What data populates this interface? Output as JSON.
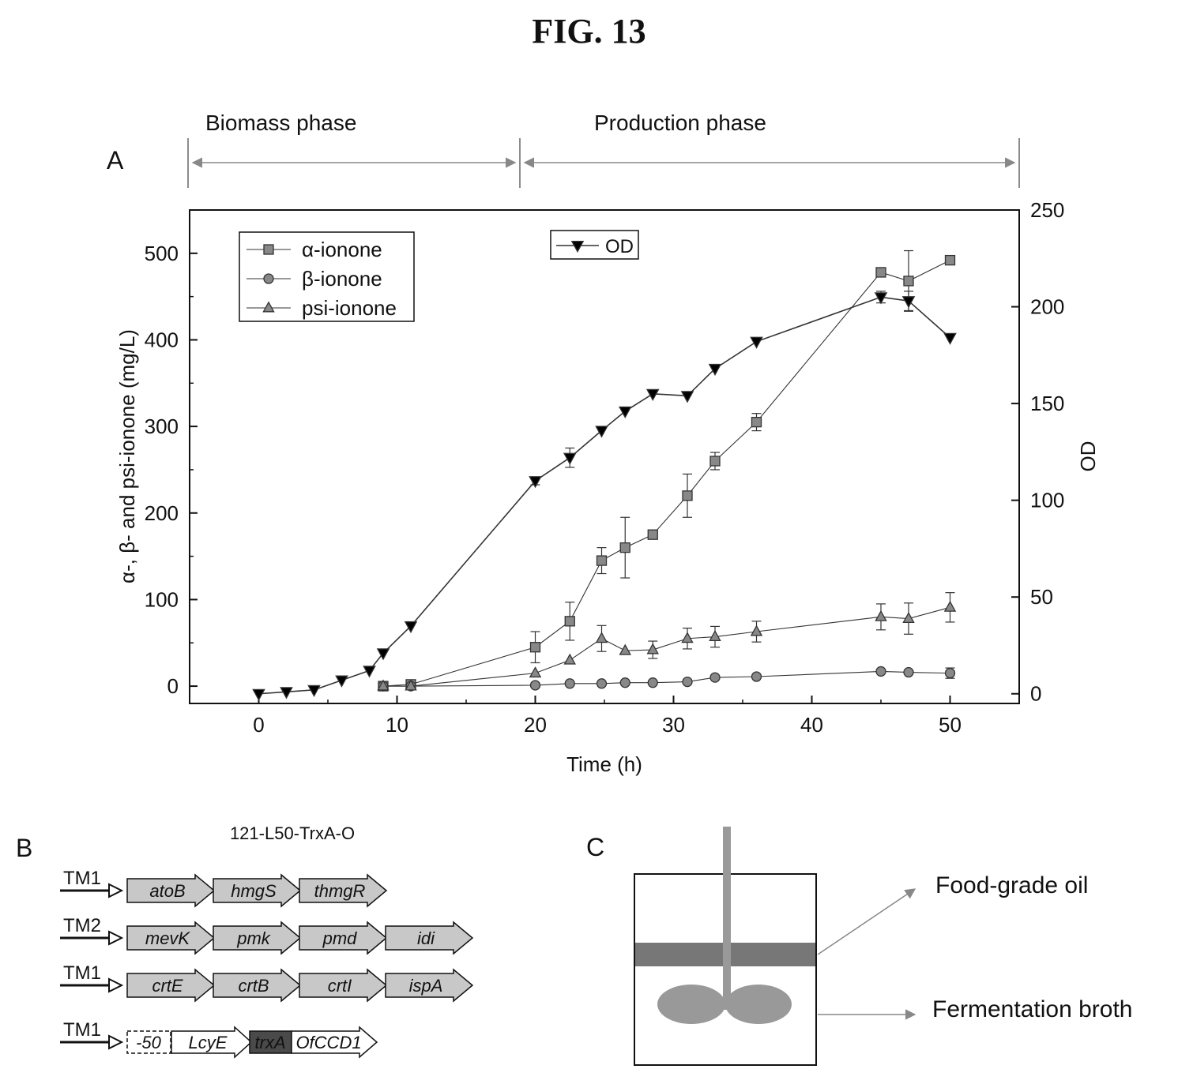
{
  "figure_title": "FIG. 13",
  "panels": {
    "a": "A",
    "b": "B",
    "c": "C"
  },
  "phases": {
    "biomass": "Biomass phase",
    "production": "Production phase"
  },
  "chart_data": {
    "type": "line",
    "xlabel": "Time (h)",
    "ylabel": "α-, β- and psi-ionone (mg/L)",
    "y2label": "OD",
    "xlim": [
      -5,
      55
    ],
    "ylim": [
      -20,
      550
    ],
    "y2lim": [
      -5,
      250
    ],
    "xticks": [
      0,
      10,
      20,
      30,
      40,
      50
    ],
    "yticks": [
      0,
      100,
      200,
      300,
      400,
      500
    ],
    "y2ticks": [
      0,
      50,
      100,
      150,
      200,
      250
    ],
    "legend_left": "top-left",
    "legend_right": "top-center",
    "series": [
      {
        "name": "α-ionone",
        "axis": "left",
        "marker": "square",
        "x": [
          9,
          11,
          20,
          22.5,
          24.8,
          26.5,
          28.5,
          31,
          33,
          36,
          45,
          47,
          50
        ],
        "y": [
          0,
          2,
          45,
          75,
          145,
          160,
          175,
          220,
          260,
          305,
          478,
          468,
          492
        ],
        "err": [
          0,
          0,
          18,
          22,
          15,
          35,
          5,
          25,
          10,
          10,
          0,
          35,
          0
        ]
      },
      {
        "name": "β-ionone",
        "axis": "left",
        "marker": "circle",
        "x": [
          9,
          11,
          20,
          22.5,
          24.8,
          26.5,
          28.5,
          31,
          33,
          36,
          45,
          47,
          50
        ],
        "y": [
          0,
          0,
          1,
          3,
          3,
          4,
          4,
          5,
          10,
          11,
          17,
          16,
          15
        ],
        "err": [
          0,
          0,
          0,
          0,
          0,
          0,
          0,
          0,
          0,
          0,
          0,
          0,
          6
        ]
      },
      {
        "name": "psi-ionone",
        "axis": "left",
        "marker": "triangle",
        "x": [
          9,
          11,
          20,
          22.5,
          24.8,
          26.5,
          28.5,
          31,
          33,
          36,
          45,
          47,
          50
        ],
        "y": [
          0,
          0,
          15,
          30,
          55,
          41,
          42,
          55,
          57,
          63,
          80,
          78,
          91
        ],
        "err": [
          0,
          0,
          0,
          0,
          15,
          0,
          10,
          12,
          12,
          12,
          15,
          18,
          17
        ]
      },
      {
        "name": "OD",
        "axis": "right",
        "marker": "triangle-down",
        "x": [
          0,
          2,
          4,
          6,
          8,
          9,
          11,
          20,
          22.5,
          24.8,
          26.5,
          28.5,
          31,
          33,
          36,
          45,
          47,
          50
        ],
        "y": [
          0,
          1,
          2,
          7,
          12,
          21,
          35,
          110,
          122,
          136,
          146,
          155,
          154,
          168,
          182,
          205,
          203,
          184
        ],
        "err": [
          0,
          0,
          0,
          0,
          0,
          0,
          0,
          2,
          5,
          0,
          0,
          0,
          0,
          0,
          0,
          3,
          5,
          0
        ]
      }
    ]
  },
  "panel_b": {
    "title": "121-L50-TrxA-O",
    "rows": [
      {
        "promoter": "TM1",
        "genes": [
          "atoB",
          "hmgS",
          "thmgR"
        ]
      },
      {
        "promoter": "TM2",
        "genes": [
          "mevK",
          "pmk",
          "pmd",
          "idi"
        ]
      },
      {
        "promoter": "TM1",
        "genes": [
          "crtE",
          "crtB",
          "crtI",
          "ispA"
        ]
      },
      {
        "promoter": "TM1",
        "genes": [
          "-50",
          "LcyE",
          "trxA",
          "OfCCD1"
        ]
      }
    ]
  },
  "panel_c": {
    "oil_label": "Food-grade oil",
    "broth_label": "Fermentation broth"
  },
  "colors": {
    "series": "#333333",
    "gene_fill": "#c8c8c8",
    "trxa_fill": "#4a4a4a",
    "oil_fill": "#777777",
    "impeller_fill": "#999999"
  }
}
